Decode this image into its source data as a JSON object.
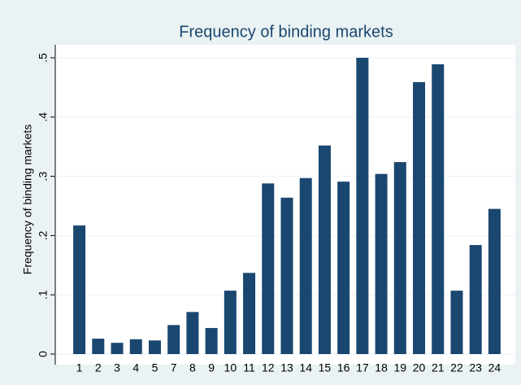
{
  "chart_data": {
    "type": "bar",
    "title": "Frequency of binding markets",
    "y_label": "Frequency of binding markets",
    "categories": [
      "1",
      "2",
      "3",
      "4",
      "5",
      "7",
      "8",
      "9",
      "10",
      "11",
      "12",
      "13",
      "14",
      "15",
      "16",
      "17",
      "18",
      "19",
      "20",
      "21",
      "22",
      "23",
      "24"
    ],
    "values": [
      0.217,
      0.026,
      0.019,
      0.025,
      0.023,
      0.049,
      0.071,
      0.044,
      0.107,
      0.137,
      0.288,
      0.264,
      0.297,
      0.352,
      0.291,
      0.5,
      0.304,
      0.324,
      0.459,
      0.489,
      0.107,
      0.184,
      0.245
    ],
    "color": "#1a476f",
    "ylim": [
      0,
      0.5
    ],
    "yticks": [
      0,
      {
        "value": 0.1,
        "label": ".1"
      },
      {
        "value": 0.2,
        "label": ".2"
      },
      {
        "value": 0.3,
        "label": ".3"
      },
      {
        "value": 0.4,
        "label": ".4"
      },
      {
        "value": 0.5,
        "label": ".5"
      }
    ],
    "grid": true
  }
}
